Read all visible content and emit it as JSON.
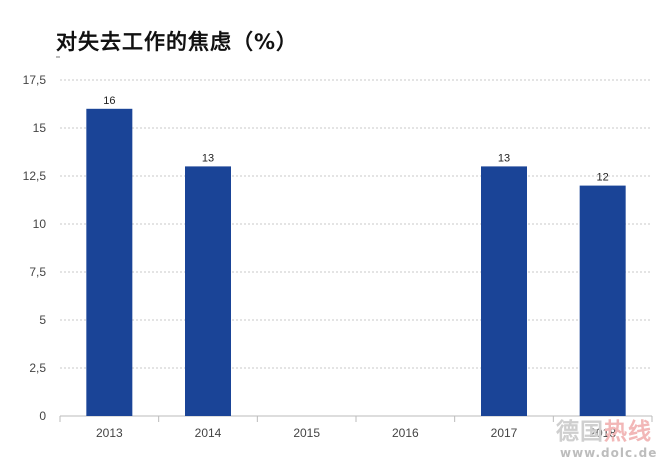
{
  "title": "对失去工作的焦虑（%）",
  "chart_data": {
    "type": "bar",
    "title": "对失去工作的焦虑（%）",
    "categories": [
      "2013",
      "2014",
      "2015",
      "2016",
      "2017",
      "2018"
    ],
    "values": [
      16,
      13,
      null,
      null,
      13,
      12
    ],
    "value_labels": [
      "16",
      "13",
      "",
      "",
      "13",
      "12"
    ],
    "y_ticks": [
      0,
      2.5,
      5,
      7.5,
      10,
      12.5,
      15,
      17.5
    ],
    "y_tick_labels": [
      "0",
      "2,5",
      "5",
      "7,5",
      "10",
      "12,5",
      "15",
      "17,5"
    ],
    "ylim": [
      0,
      17.5
    ],
    "grid": true,
    "legend": "none",
    "bar_color": "#1a4497"
  },
  "watermark": {
    "part1": "德国",
    "part2": "热线",
    "url": "www.dolc.de"
  }
}
